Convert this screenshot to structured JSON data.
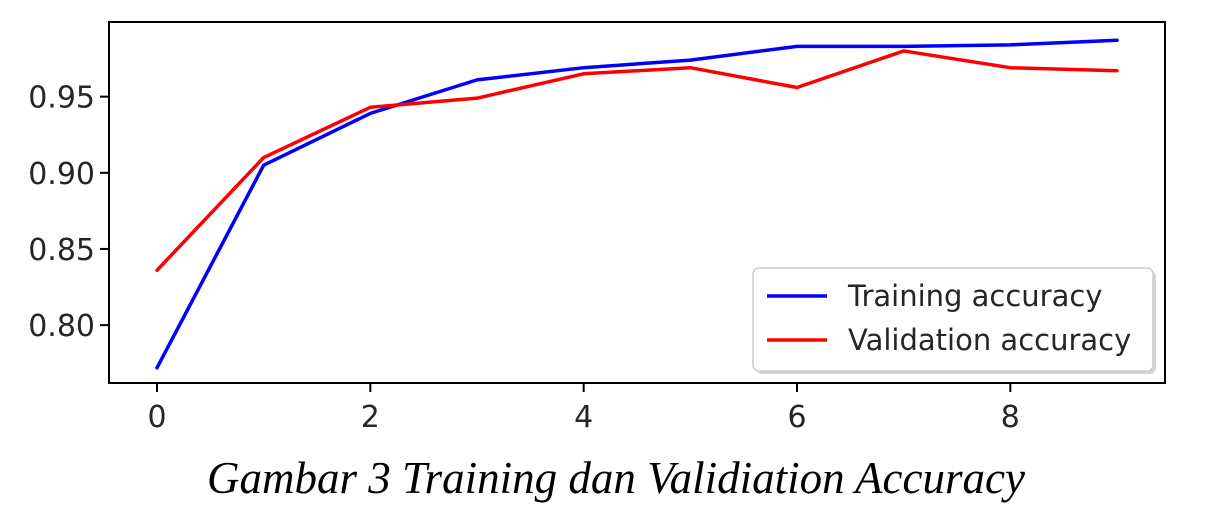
{
  "chart_data": {
    "type": "line",
    "x": [
      0,
      1,
      2,
      3,
      4,
      5,
      6,
      7,
      8,
      9
    ],
    "series": [
      {
        "name": "Training accuracy",
        "color": "#0000ff",
        "values": [
          0.772,
          0.905,
          0.939,
          0.961,
          0.969,
          0.974,
          0.983,
          0.983,
          0.984,
          0.987
        ]
      },
      {
        "name": "Validation accuracy",
        "color": "#ff0000",
        "values": [
          0.836,
          0.91,
          0.943,
          0.949,
          0.965,
          0.969,
          0.956,
          0.98,
          0.969,
          0.967
        ]
      }
    ],
    "xlim": [
      -0.45,
      9.45
    ],
    "ylim": [
      0.762,
      0.999
    ],
    "xticks": [
      0,
      2,
      4,
      6,
      8
    ],
    "xtick_labels": [
      "0",
      "2",
      "4",
      "6",
      "8"
    ],
    "yticks": [
      0.8,
      0.85,
      0.9,
      0.95
    ],
    "ytick_labels": [
      "0.80",
      "0.85",
      "0.90",
      "0.95"
    ],
    "grid": false,
    "legend_position": "lower-right"
  },
  "caption": "Gambar 3 Training dan Validiation Accuracy"
}
